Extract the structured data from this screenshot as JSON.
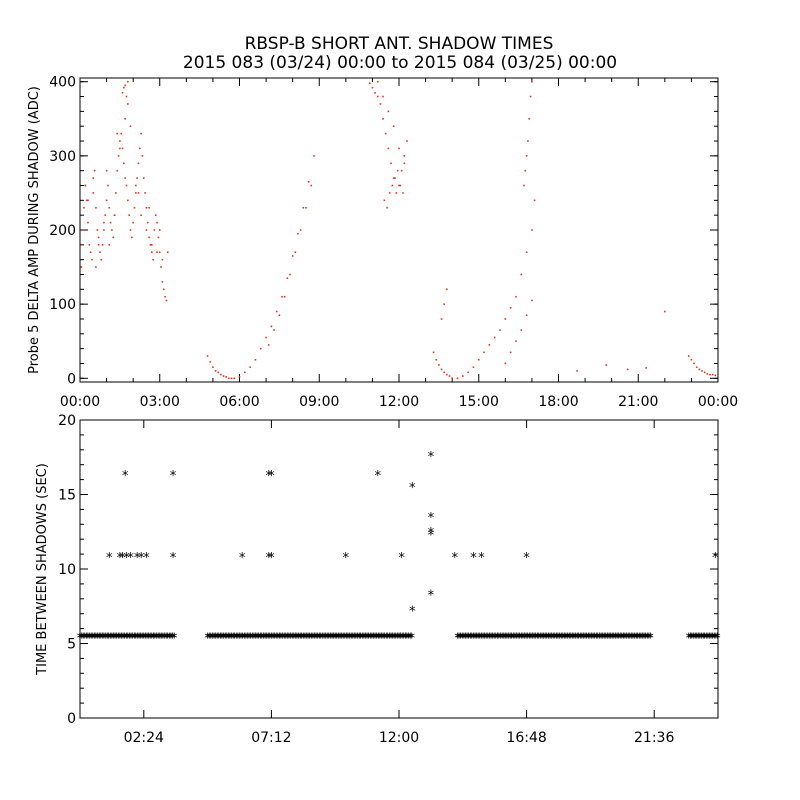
{
  "title_line1": "RBSP-B SHORT ANT. SHADOW TIMES",
  "title_line2": "2015 083 (03/24) 00:00 to 2015 084 (03/25) 00:00",
  "colors": {
    "top_series": "#e8321c",
    "bottom_series": "#000000"
  },
  "chart_data": [
    {
      "type": "scatter",
      "title": "",
      "xlabel": "",
      "ylabel": "Probe 5 DELTA AMP DURING SHADOW (ADC)",
      "x_unit": "hours",
      "xlim": [
        0,
        24
      ],
      "ylim": [
        -5,
        405
      ],
      "xticks": [
        0,
        3,
        6,
        9,
        12,
        15,
        18,
        21,
        24
      ],
      "xtick_labels": [
        "00:00",
        "03:00",
        "06:00",
        "09:00",
        "12:00",
        "15:00",
        "18:00",
        "21:00",
        "00:00"
      ],
      "yticks": [
        0,
        100,
        200,
        300,
        400
      ],
      "ytick_labels": [
        "0",
        "100",
        "200",
        "300",
        "400"
      ],
      "grid": false,
      "series": [
        {
          "color": "#e8321c",
          "marker": "dot",
          "x": [
            0.05,
            0.1,
            0.15,
            0.2,
            0.25,
            0.3,
            0.35,
            0.4,
            0.45,
            0.5,
            0.55,
            0.6,
            0.65,
            0.7,
            0.75,
            0.8,
            0.85,
            0.9,
            0.95,
            1.0,
            1.05,
            1.1,
            1.15,
            1.2,
            1.25,
            1.3,
            1.35,
            1.4,
            1.45,
            1.5,
            1.55,
            1.6,
            1.65,
            1.7,
            1.75,
            1.8,
            1.85,
            1.9,
            1.95,
            2.0,
            2.05,
            2.1,
            2.15,
            2.2,
            2.25,
            2.3,
            2.35,
            2.4,
            2.45,
            2.5,
            2.55,
            2.6,
            2.65,
            2.7,
            2.75,
            2.8,
            2.85,
            2.9,
            2.95,
            3.0,
            3.05,
            3.1,
            3.15,
            3.2,
            3.25,
            3.3,
            0.1,
            0.3,
            0.5,
            0.7,
            0.9,
            1.1,
            1.3,
            1.5,
            1.7,
            1.9,
            2.1,
            2.3,
            2.5,
            2.7,
            2.9,
            3.1,
            0.2,
            0.6,
            1.0,
            1.4,
            1.8,
            2.2,
            2.6,
            3.0,
            1.6,
            1.7,
            1.8,
            1.65,
            1.75,
            4.8,
            4.9,
            5.0,
            5.1,
            5.2,
            5.3,
            5.4,
            5.5,
            5.6,
            5.7,
            5.8,
            6.0,
            6.2,
            6.4,
            6.6,
            6.8,
            7.0,
            7.2,
            7.4,
            7.6,
            7.8,
            8.0,
            8.2,
            8.4,
            8.6,
            8.8,
            7.1,
            7.3,
            7.5,
            7.7,
            7.9,
            8.1,
            8.3,
            8.5,
            8.7,
            10.9,
            11.0,
            11.1,
            11.2,
            11.3,
            11.4,
            11.5,
            11.6,
            11.7,
            11.8,
            11.9,
            12.0,
            12.1,
            12.2,
            12.3,
            11.45,
            11.55,
            11.65,
            11.75,
            11.85,
            11.95,
            12.05,
            12.15,
            11.2,
            11.4,
            11.6,
            11.8,
            12.0,
            12.2,
            13.3,
            13.4,
            13.5,
            13.6,
            13.7,
            13.8,
            13.9,
            14.0,
            14.2,
            14.4,
            14.6,
            14.8,
            15.0,
            15.2,
            15.4,
            15.6,
            15.8,
            16.0,
            16.2,
            16.4,
            16.6,
            16.8,
            17.0,
            17.1,
            16.0,
            16.2,
            16.4,
            16.6,
            16.8,
            17.0,
            16.7,
            16.75,
            16.8,
            16.85,
            16.9,
            16.95,
            17.0,
            13.6,
            13.7,
            13.8,
            22.9,
            23.0,
            23.1,
            23.2,
            23.3,
            23.4,
            23.5,
            23.6,
            23.7,
            23.8,
            23.9,
            18.7,
            19.8,
            20.6,
            21.3,
            22.0
          ],
          "y": [
            150,
            200,
            230,
            260,
            240,
            210,
            180,
            170,
            160,
            250,
            280,
            230,
            200,
            180,
            170,
            160,
            180,
            200,
            220,
            240,
            260,
            230,
            210,
            200,
            190,
            220,
            250,
            280,
            300,
            320,
            330,
            310,
            290,
            270,
            260,
            240,
            220,
            200,
            190,
            210,
            230,
            250,
            270,
            290,
            310,
            330,
            300,
            270,
            250,
            230,
            210,
            190,
            180,
            170,
            160,
            200,
            220,
            210,
            190,
            170,
            150,
            130,
            120,
            110,
            105,
            170,
            180,
            240,
            270,
            190,
            210,
            180,
            220,
            310,
            350,
            340,
            260,
            220,
            200,
            180,
            170,
            160,
            260,
            150,
            280,
            330,
            370,
            250,
            230,
            200,
            385,
            395,
            400,
            392,
            380,
            30,
            22,
            15,
            10,
            8,
            5,
            3,
            2,
            0,
            0,
            0,
            2,
            8,
            15,
            25,
            40,
            55,
            70,
            90,
            110,
            135,
            165,
            195,
            230,
            265,
            300,
            45,
            65,
            85,
            110,
            140,
            170,
            200,
            230,
            260,
            398,
            392,
            385,
            380,
            370,
            350,
            330,
            310,
            290,
            270,
            250,
            260,
            280,
            300,
            320,
            240,
            230,
            250,
            260,
            270,
            280,
            260,
            250,
            400,
            380,
            360,
            340,
            310,
            290,
            35,
            25,
            18,
            12,
            8,
            5,
            3,
            0,
            0,
            3,
            8,
            15,
            25,
            35,
            45,
            55,
            65,
            80,
            95,
            110,
            140,
            170,
            200,
            240,
            20,
            35,
            50,
            65,
            85,
            105,
            260,
            280,
            300,
            320,
            350,
            380,
            400,
            80,
            100,
            120,
            30,
            25,
            20,
            15,
            12,
            10,
            8,
            6,
            5,
            5,
            4,
            10,
            18,
            12,
            14,
            90
          ],
          "name": ""
        }
      ]
    },
    {
      "type": "scatter",
      "title": "",
      "xlabel": "",
      "ylabel": "TIME BETWEEN SHADOWS (SEC)",
      "x_unit": "hours",
      "xlim": [
        0,
        24
      ],
      "ylim": [
        0,
        20
      ],
      "xticks": [
        2.4,
        7.2,
        12.0,
        16.8,
        21.6
      ],
      "xtick_labels": [
        "02:24",
        "07:12",
        "12:00",
        "16:48",
        "21:36"
      ],
      "yticks": [
        0,
        5,
        10,
        15,
        20
      ],
      "ytick_labels": [
        "0",
        "5",
        "10",
        "15",
        "20"
      ],
      "grid": false,
      "series": [
        {
          "color": "#000000",
          "marker": "asterisk",
          "baseline_segments": [
            [
              0.0,
              3.6
            ],
            [
              4.8,
              12.5
            ],
            [
              14.2,
              21.5
            ],
            [
              22.9,
              24.0
            ]
          ],
          "baseline_y": 5.4,
          "x": [
            1.1,
            1.5,
            1.6,
            1.75,
            1.9,
            2.15,
            2.3,
            2.5,
            3.5,
            6.1,
            7.1,
            7.2,
            10.0,
            12.1,
            14.1,
            14.8,
            15.1,
            16.8,
            23.9,
            1.7,
            3.5,
            7.1,
            7.2,
            11.2,
            12.5,
            13.2,
            13.2,
            13.2,
            13.2,
            12.5,
            13.2
          ],
          "y": [
            10.8,
            10.8,
            10.8,
            10.8,
            10.8,
            10.8,
            10.8,
            10.8,
            10.8,
            10.8,
            10.8,
            10.8,
            10.8,
            10.8,
            10.8,
            10.8,
            10.8,
            10.8,
            10.8,
            16.3,
            16.3,
            16.3,
            16.3,
            16.3,
            15.5,
            17.6,
            13.5,
            12.5,
            12.3,
            7.2,
            8.3
          ],
          "name": ""
        }
      ]
    }
  ]
}
